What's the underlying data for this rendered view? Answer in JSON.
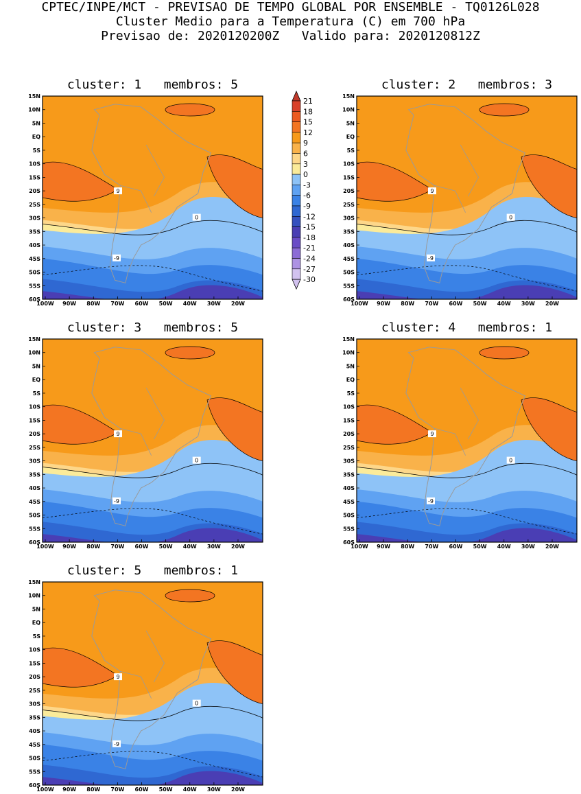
{
  "header": {
    "line1": "CPTEC/INPE/MCT - PREVISAO DE TEMPO GLOBAL POR ENSEMBLE - TQ0126L028",
    "line2": "Cluster Medio para a Temperatura (C) em 700 hPa",
    "line3": "Previsao de: 2020120200Z   Valido para: 2020120812Z"
  },
  "axes": {
    "lat_ticks": [
      "15N",
      "10N",
      "5N",
      "EQ",
      "5S",
      "10S",
      "15S",
      "20S",
      "25S",
      "30S",
      "35S",
      "40S",
      "45S",
      "50S",
      "55S",
      "60S"
    ],
    "lon_ticks": [
      "100W",
      "90W",
      "80W",
      "70W",
      "60W",
      "50W",
      "40W",
      "30W",
      "20W"
    ]
  },
  "colorbar": {
    "levels": [
      "21",
      "18",
      "15",
      "12",
      "9",
      "6",
      "3",
      "0",
      "-3",
      "-6",
      "-9",
      "-12",
      "-15",
      "-18",
      "-21",
      "-24",
      "-27",
      "-30"
    ],
    "colors": [
      "#c0392b",
      "#d9412a",
      "#ec5a1f",
      "#f37522",
      "#f79a1a",
      "#f9b24a",
      "#fdd78a",
      "#fbeb9a",
      "#8ec3f7",
      "#5fa2f2",
      "#3a82e6",
      "#2f68d2",
      "#3551bf",
      "#4a3eb4",
      "#6a4cc6",
      "#8c6cd6",
      "#ad92e3",
      "#d2c2ef"
    ]
  },
  "panels": [
    {
      "title": "cluster: 1   membros: 5",
      "labels": {
        "warm": "9",
        "zero": "0",
        "cold": "-9"
      }
    },
    {
      "title": "cluster: 2   membros: 3",
      "labels": {
        "warm": "9",
        "zero": "0",
        "cold": "-9"
      }
    },
    {
      "title": "cluster: 3   membros: 5",
      "labels": {
        "warm": "9",
        "zero": "0",
        "cold": "-9"
      }
    },
    {
      "title": "cluster: 4   membros: 1",
      "labels": {
        "warm": "9",
        "zero": "0",
        "cold": "-9"
      }
    },
    {
      "title": "cluster: 5   membros: 1",
      "labels": {
        "warm": "9",
        "zero": "0",
        "cold": "-9"
      }
    }
  ]
}
